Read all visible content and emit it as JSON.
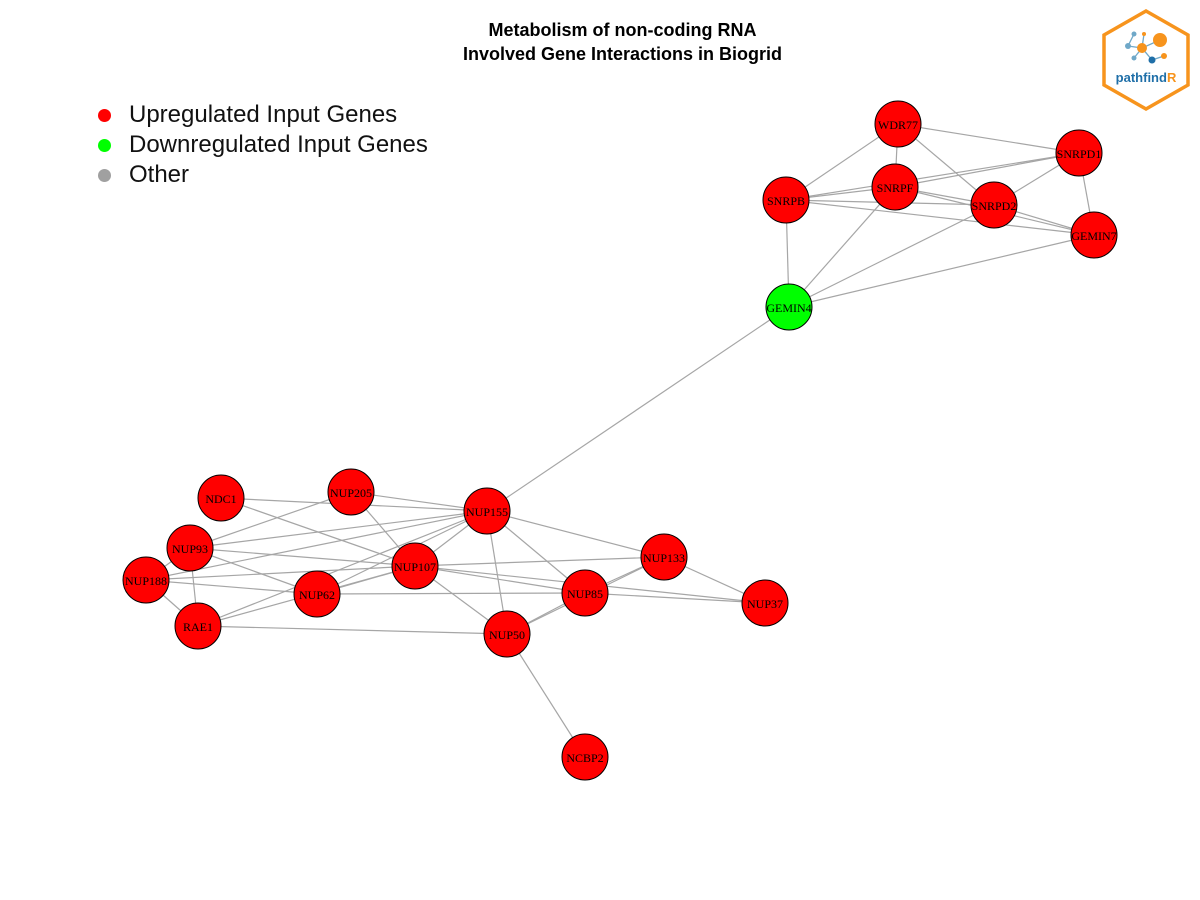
{
  "title": {
    "line1": "Metabolism of non-coding RNA",
    "line2": "Involved Gene Interactions in Biogrid"
  },
  "legend": [
    {
      "label": "Upregulated Input Genes",
      "color": "#ff0000"
    },
    {
      "label": "Downregulated Input Genes",
      "color": "#00ff00"
    },
    {
      "label": "Other",
      "color": "#a0a0a0"
    }
  ],
  "logo": {
    "text_main": "pathfind",
    "text_accent": "R",
    "border_color": "#f7941d",
    "text_color": "#1f6fa8"
  },
  "colors": {
    "upregulated": "#ff0000",
    "downregulated": "#00ff00",
    "edge": "#a6a6a6"
  },
  "nodes": [
    {
      "id": "WDR77",
      "group": "upregulated"
    },
    {
      "id": "SNRPD1",
      "group": "upregulated"
    },
    {
      "id": "SNRPB",
      "group": "upregulated"
    },
    {
      "id": "SNRPF",
      "group": "upregulated"
    },
    {
      "id": "SNRPD2",
      "group": "upregulated"
    },
    {
      "id": "GEMIN7",
      "group": "upregulated"
    },
    {
      "id": "GEMIN4",
      "group": "downregulated"
    },
    {
      "id": "NDC1",
      "group": "upregulated"
    },
    {
      "id": "NUP205",
      "group": "upregulated"
    },
    {
      "id": "NUP155",
      "group": "upregulated"
    },
    {
      "id": "NUP93",
      "group": "upregulated"
    },
    {
      "id": "NUP107",
      "group": "upregulated"
    },
    {
      "id": "NUP133",
      "group": "upregulated"
    },
    {
      "id": "NUP188",
      "group": "upregulated"
    },
    {
      "id": "NUP62",
      "group": "upregulated"
    },
    {
      "id": "NUP85",
      "group": "upregulated"
    },
    {
      "id": "NUP37",
      "group": "upregulated"
    },
    {
      "id": "RAE1",
      "group": "upregulated"
    },
    {
      "id": "NUP50",
      "group": "upregulated"
    },
    {
      "id": "NCBP2",
      "group": "upregulated"
    }
  ],
  "edges": [
    [
      "WDR77",
      "SNRPB"
    ],
    [
      "WDR77",
      "SNRPF"
    ],
    [
      "WDR77",
      "SNRPD1"
    ],
    [
      "WDR77",
      "SNRPD2"
    ],
    [
      "SNRPB",
      "SNRPF"
    ],
    [
      "SNRPB",
      "SNRPD2"
    ],
    [
      "SNRPB",
      "SNRPD1"
    ],
    [
      "SNRPB",
      "GEMIN7"
    ],
    [
      "SNRPB",
      "GEMIN4"
    ],
    [
      "SNRPF",
      "SNRPD1"
    ],
    [
      "SNRPF",
      "SNRPD2"
    ],
    [
      "SNRPF",
      "GEMIN7"
    ],
    [
      "SNRPF",
      "GEMIN4"
    ],
    [
      "SNRPD2",
      "SNRPD1"
    ],
    [
      "SNRPD2",
      "GEMIN7"
    ],
    [
      "SNRPD2",
      "GEMIN4"
    ],
    [
      "SNRPD1",
      "GEMIN7"
    ],
    [
      "GEMIN7",
      "GEMIN4"
    ],
    [
      "GEMIN4",
      "NUP155"
    ],
    [
      "NDC1",
      "NUP155"
    ],
    [
      "NDC1",
      "NUP107"
    ],
    [
      "NUP205",
      "NUP155"
    ],
    [
      "NUP205",
      "NUP93"
    ],
    [
      "NUP205",
      "NUP107"
    ],
    [
      "NUP155",
      "NUP93"
    ],
    [
      "NUP155",
      "NUP107"
    ],
    [
      "NUP155",
      "NUP62"
    ],
    [
      "NUP155",
      "NUP133"
    ],
    [
      "NUP155",
      "NUP85"
    ],
    [
      "NUP155",
      "NUP50"
    ],
    [
      "NUP155",
      "RAE1"
    ],
    [
      "NUP155",
      "NUP188"
    ],
    [
      "NUP93",
      "NUP107"
    ],
    [
      "NUP93",
      "NUP62"
    ],
    [
      "NUP93",
      "NUP188"
    ],
    [
      "NUP93",
      "RAE1"
    ],
    [
      "NUP188",
      "NUP107"
    ],
    [
      "NUP188",
      "NUP62"
    ],
    [
      "NUP188",
      "RAE1"
    ],
    [
      "NUP107",
      "NUP62"
    ],
    [
      "NUP107",
      "NUP85"
    ],
    [
      "NUP107",
      "NUP133"
    ],
    [
      "NUP107",
      "NUP37"
    ],
    [
      "NUP107",
      "NUP50"
    ],
    [
      "NUP107",
      "RAE1"
    ],
    [
      "NUP62",
      "NUP85"
    ],
    [
      "NUP133",
      "NUP85"
    ],
    [
      "NUP133",
      "NUP37"
    ],
    [
      "NUP133",
      "NUP50"
    ],
    [
      "NUP85",
      "NUP37"
    ],
    [
      "NUP85",
      "NUP50"
    ],
    [
      "RAE1",
      "NUP50"
    ],
    [
      "NUP50",
      "NCBP2"
    ]
  ]
}
